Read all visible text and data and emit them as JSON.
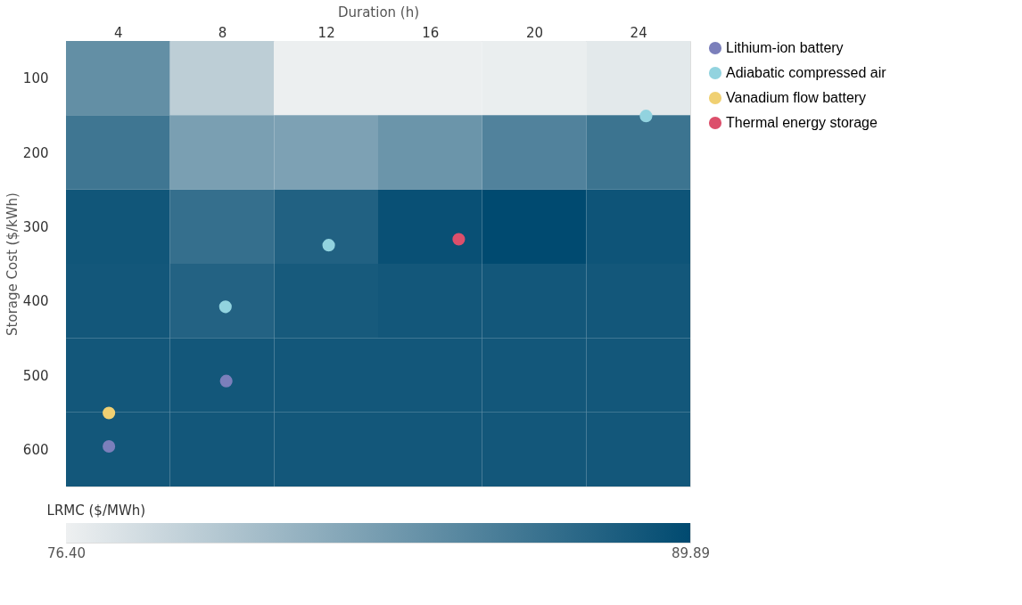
{
  "chart_data": {
    "type": "heatmap",
    "xlabel": "Duration (h)",
    "ylabel": "Storage Cost ($/kWh)",
    "clabel": "LRMC ($/MWh)",
    "cells": [
      [
        84.3,
        79.2,
        76.5,
        76.5,
        76.6,
        77.0
      ],
      [
        86.3,
        83.0,
        82.8,
        83.8,
        85.3,
        86.5
      ],
      [
        88.9,
        86.9,
        88.0,
        89.4,
        89.89,
        89.1
      ],
      [
        88.8,
        87.9,
        88.6,
        88.8,
        88.8,
        88.8
      ],
      [
        88.8,
        88.8,
        88.8,
        88.8,
        88.8,
        88.8
      ],
      [
        88.8,
        88.8,
        88.8,
        88.8,
        88.8,
        88.8
      ]
    ],
    "clim": [
      76.4,
      89.89
    ],
    "cticks": [
      {
        "value": 76.4,
        "label": "76.40"
      },
      {
        "value": 89.89,
        "label": "89.89"
      }
    ],
    "xlim": [
      2,
      26
    ],
    "xticks": [
      4,
      8,
      12,
      16,
      20,
      24
    ],
    "ylim": [
      650,
      50
    ],
    "yticks": [
      100,
      200,
      300,
      400,
      500,
      600
    ],
    "legend": "right",
    "marker": "circle",
    "series": [
      {
        "name": "Lithium-ion battery",
        "type": "scatter",
        "color": "#7b7fbb",
        "x": [
          3.65,
          8.16
        ],
        "values": [
          596,
          508
        ]
      },
      {
        "name": "Adiabatic compressed air",
        "type": "scatter",
        "color": "#92d3df",
        "x": [
          24.3,
          12.1,
          8.13
        ],
        "values": [
          151,
          325,
          408
        ]
      },
      {
        "name": "Vanadium flow battery",
        "type": "scatter",
        "color": "#f0d072",
        "x": [
          3.65
        ],
        "values": [
          551
        ]
      },
      {
        "name": "Thermal energy storage",
        "type": "scatter",
        "color": "#dc4f6b",
        "x": [
          17.1
        ],
        "values": [
          317
        ]
      }
    ]
  }
}
